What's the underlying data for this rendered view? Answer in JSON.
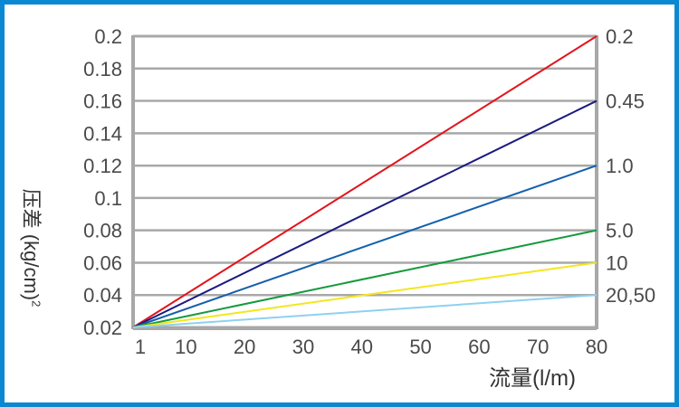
{
  "chart_data": {
    "type": "line",
    "title": "",
    "xlabel": "流量(l/m)",
    "ylabel": "压差 (kg/cm)",
    "ylabel_sup": "2",
    "x_ticks": [
      "1",
      "10",
      "20",
      "30",
      "40",
      "50",
      "60",
      "70",
      "80"
    ],
    "y_ticks": [
      "0.02",
      "0.04",
      "0.06",
      "0.08",
      "0.1",
      "0.12",
      "0.14",
      "0.16",
      "0.18",
      "0.2"
    ],
    "xlim": [
      1,
      80
    ],
    "ylim": [
      0.02,
      0.2
    ],
    "grid": "horizontal",
    "series": [
      {
        "name": "0.2",
        "color": "#e3141c",
        "x": [
          1,
          80
        ],
        "y": [
          0.02,
          0.2
        ]
      },
      {
        "name": "0.45",
        "color": "#1a1a80",
        "x": [
          1,
          80
        ],
        "y": [
          0.02,
          0.16
        ]
      },
      {
        "name": "1.0",
        "color": "#1560ac",
        "x": [
          1,
          80
        ],
        "y": [
          0.02,
          0.12
        ]
      },
      {
        "name": "5.0",
        "color": "#149a3c",
        "x": [
          1,
          80
        ],
        "y": [
          0.02,
          0.08
        ]
      },
      {
        "name": "10",
        "color": "#f4e61c",
        "x": [
          1,
          80
        ],
        "y": [
          0.02,
          0.06
        ]
      },
      {
        "name": "20,50",
        "color": "#8fd0f0",
        "x": [
          1,
          80
        ],
        "y": [
          0.02,
          0.04
        ]
      }
    ]
  }
}
